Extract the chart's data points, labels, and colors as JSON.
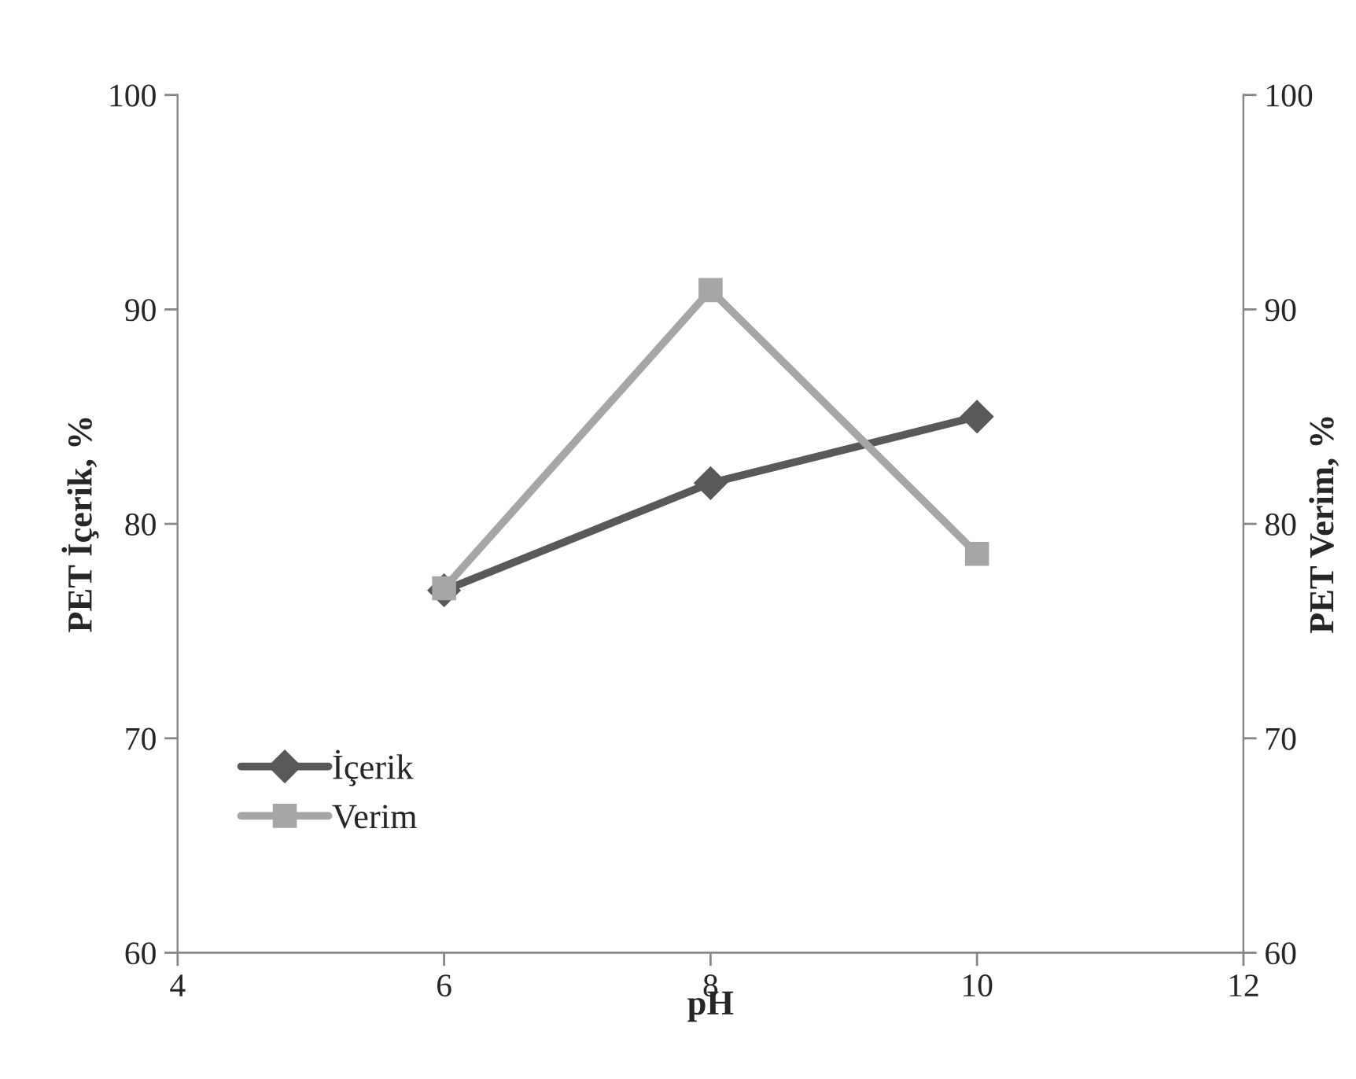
{
  "chart_data": {
    "type": "line",
    "xlabel": "pH",
    "ylabel": "PET İçerik, %",
    "y2label": "PET Verim, %",
    "x": [
      6,
      8,
      10
    ],
    "series": [
      {
        "name": "İçerik",
        "color": "#595959",
        "values": [
          76.9,
          81.9,
          85.0
        ],
        "marker": "diamond"
      },
      {
        "name": "Verim",
        "color": "#a6a6a6",
        "values": [
          77.0,
          90.9,
          78.6
        ],
        "marker": "square"
      }
    ],
    "xlim": [
      4,
      12
    ],
    "xticks": [
      4,
      6,
      8,
      10,
      12
    ],
    "ylim": [
      60,
      100
    ],
    "yticks": [
      60,
      70,
      80,
      90,
      100
    ],
    "y2lim": [
      60,
      100
    ],
    "y2ticks": [
      60,
      70,
      80,
      90,
      100
    ],
    "grid": false,
    "legend": "bottom left",
    "line_style": "solid"
  }
}
